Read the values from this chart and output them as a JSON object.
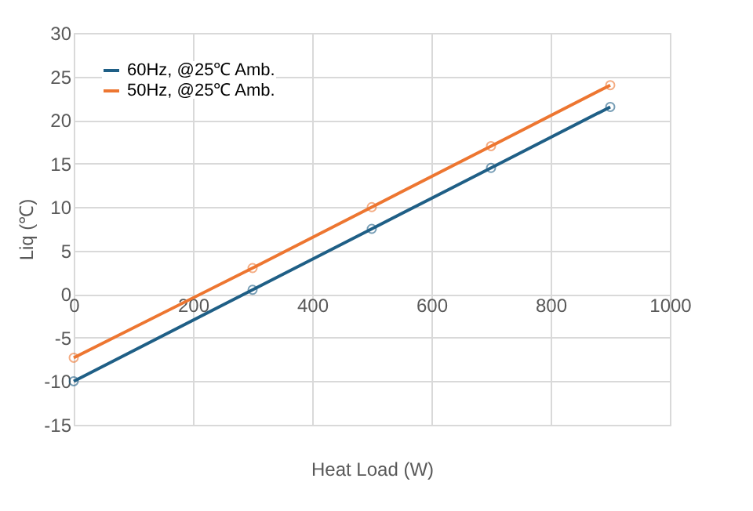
{
  "chart_data": {
    "type": "line",
    "xlabel": "Heat Load (W)",
    "ylabel": "Liq (℃)",
    "x": [
      0,
      300,
      500,
      700,
      900
    ],
    "series": [
      {
        "name": "60Hz, @25℃ Amb.",
        "color": "#1f5f86",
        "values": [
          -10,
          0.5,
          7.5,
          14.5,
          21.5
        ]
      },
      {
        "name": "50Hz, @25℃ Amb.",
        "color": "#ed7631",
        "values": [
          -7.3,
          3,
          10,
          17,
          24
        ]
      }
    ],
    "xlim": [
      0,
      1000
    ],
    "xticks": [
      0,
      200,
      400,
      600,
      800,
      1000
    ],
    "ylim": [
      -15,
      30
    ],
    "yticks": [
      -15,
      -10,
      -5,
      0,
      5,
      10,
      15,
      20,
      25,
      30
    ],
    "grid": true,
    "legend": "top left",
    "marker": "circle",
    "line_style": "solid"
  }
}
